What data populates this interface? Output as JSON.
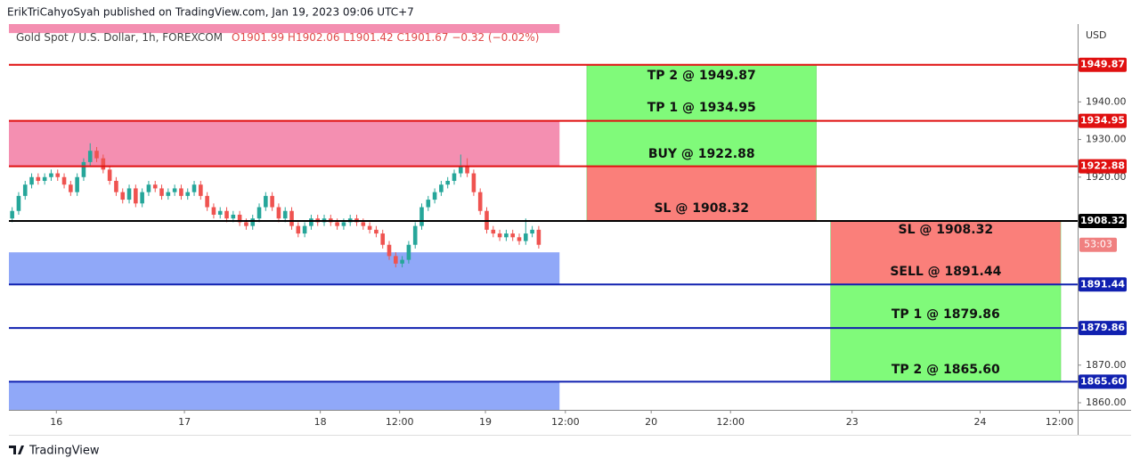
{
  "header": "ErikTriCahyoSyah published on TradingView.com, Jan 19, 2023 09:06 UTC+7",
  "footer": "TradingView",
  "chart_data": {
    "type": "candlestick",
    "symbol": "Gold Spot / U.S. Dollar, 1h, FOREXCOM",
    "ohlc_text": "O1901.99  H1902.06  L1901.42  C1901.67  −0.32 (−0.02%)",
    "currency": "USD",
    "countdown": "53:03",
    "up_color": "#26a69a",
    "down_color": "#ef5350",
    "x": [
      0,
      1,
      2,
      3,
      4,
      5,
      6,
      7,
      8,
      9,
      10,
      11,
      12,
      13,
      14,
      15,
      16,
      17,
      18,
      19,
      20,
      21,
      22,
      23,
      24,
      25,
      26,
      27,
      28,
      29,
      30,
      31,
      32,
      33,
      34,
      35,
      36,
      37,
      38,
      39,
      40,
      41,
      42,
      43,
      44,
      45,
      46,
      47,
      48,
      49,
      50,
      51,
      52,
      53,
      54,
      55,
      56,
      57,
      58,
      59,
      60,
      61,
      62,
      63,
      64,
      65,
      66,
      67,
      68,
      69,
      70,
      71,
      72,
      73,
      74,
      75,
      76,
      77,
      78,
      79,
      80,
      81
    ],
    "open": [
      1909,
      1911,
      1915,
      1918,
      1920,
      1919,
      1920,
      1921,
      1920,
      1918,
      1916,
      1920,
      1924,
      1927,
      1925,
      1922,
      1919,
      1916,
      1914,
      1917,
      1913,
      1916,
      1918,
      1917,
      1915,
      1916,
      1917,
      1915,
      1916,
      1918,
      1915,
      1912,
      1910,
      1911,
      1909,
      1910,
      1908,
      1907,
      1909,
      1912,
      1915,
      1912,
      1909,
      1911,
      1907,
      1905,
      1907,
      1909,
      1908,
      1909,
      1908,
      1907,
      1908,
      1909,
      1908,
      1907,
      1906,
      1905,
      1902,
      1899,
      1897,
      1898,
      1902,
      1907,
      1912,
      1914,
      1916,
      1918,
      1919,
      1921,
      1923,
      1921,
      1916,
      1911,
      1906,
      1905,
      1904,
      1905,
      1904,
      1903,
      1905,
      1906
    ],
    "high": [
      1912,
      1916,
      1919,
      1921,
      1921,
      1921,
      1922,
      1922,
      1921,
      1919,
      1921,
      1925,
      1929,
      1928,
      1926,
      1923,
      1920,
      1917,
      1918,
      1918,
      1917,
      1919,
      1919,
      1918,
      1917,
      1918,
      1918,
      1917,
      1919,
      1919,
      1916,
      1913,
      1912,
      1912,
      1911,
      1911,
      1909,
      1910,
      1913,
      1916,
      1916,
      1913,
      1912,
      1912,
      1908,
      1908,
      1910,
      1910,
      1910,
      1910,
      1909,
      1909,
      1910,
      1910,
      1909,
      1908,
      1907,
      1906,
      1903,
      1900,
      1899,
      1903,
      1908,
      1913,
      1915,
      1917,
      1919,
      1920,
      1922,
      1926,
      1925,
      1922,
      1917,
      1912,
      1907,
      1906,
      1906,
      1906,
      1905,
      1909,
      1907,
      1907
    ],
    "low": [
      1908,
      1910,
      1914,
      1917,
      1918,
      1918,
      1919,
      1919,
      1917,
      1915,
      1915,
      1919,
      1923,
      1924,
      1921,
      1918,
      1915,
      1913,
      1913,
      1912,
      1912,
      1915,
      1916,
      1914,
      1914,
      1915,
      1914,
      1914,
      1915,
      1914,
      1911,
      1909,
      1909,
      1908,
      1908,
      1907,
      1906,
      1906,
      1908,
      1911,
      1911,
      1908,
      1908,
      1906,
      1904,
      1904,
      1906,
      1907,
      1907,
      1907,
      1906,
      1906,
      1907,
      1907,
      1906,
      1905,
      1904,
      1901,
      1898,
      1896,
      1896,
      1897,
      1901,
      1906,
      1911,
      1913,
      1915,
      1917,
      1918,
      1920,
      1920,
      1915,
      1910,
      1905,
      1904,
      1903,
      1903,
      1903,
      1902,
      1902,
      1904,
      1901
    ],
    "close": [
      1911,
      1915,
      1918,
      1920,
      1919,
      1920,
      1921,
      1920,
      1918,
      1916,
      1920,
      1924,
      1927,
      1925,
      1922,
      1919,
      1916,
      1914,
      1917,
      1913,
      1916,
      1918,
      1917,
      1915,
      1916,
      1917,
      1915,
      1916,
      1918,
      1915,
      1912,
      1910,
      1911,
      1909,
      1910,
      1908,
      1907,
      1909,
      1912,
      1915,
      1912,
      1909,
      1911,
      1907,
      1905,
      1907,
      1909,
      1908,
      1909,
      1908,
      1907,
      1908,
      1909,
      1908,
      1907,
      1906,
      1905,
      1902,
      1899,
      1897,
      1898,
      1902,
      1907,
      1912,
      1914,
      1916,
      1918,
      1919,
      1921,
      1923,
      1921,
      1916,
      1911,
      1906,
      1905,
      1904,
      1905,
      1904,
      1903,
      1905,
      1906,
      1902
    ],
    "xlim": [
      -0.5,
      163.9
    ],
    "ylim": [
      1858.1,
      1960.7
    ],
    "xticks": [
      {
        "value": 6.8,
        "label": "16"
      },
      {
        "value": 26.5,
        "label": "17"
      },
      {
        "value": 47.4,
        "label": "18"
      },
      {
        "value": 59.6,
        "label": "12:00"
      },
      {
        "value": 72.8,
        "label": "19"
      },
      {
        "value": 85.1,
        "label": "12:00"
      },
      {
        "value": 98.3,
        "label": "20"
      },
      {
        "value": 110.5,
        "label": "12:00"
      },
      {
        "value": 129.2,
        "label": "23"
      },
      {
        "value": 148.9,
        "label": "24"
      },
      {
        "value": 161.1,
        "label": "12:00"
      }
    ],
    "yticks": [
      {
        "value": 1860,
        "label": "1860.00"
      },
      {
        "value": 1870,
        "label": "1870.00"
      },
      {
        "value": 1920,
        "label": "1920.00"
      },
      {
        "value": 1930,
        "label": "1930.00"
      },
      {
        "value": 1940,
        "label": "1940.00"
      }
    ],
    "zones": [
      {
        "x": [
          -0.5,
          84.2
        ],
        "y": [
          1958.3,
          1960.7
        ],
        "color": "#f48fb1"
      },
      {
        "x": [
          -0.5,
          84.2
        ],
        "y": [
          1922.88,
          1934.95
        ],
        "color": "#f48fb1"
      },
      {
        "x": [
          -0.5,
          84.2
        ],
        "y": [
          1891.44,
          1900.0
        ],
        "color": "#90a8f8"
      },
      {
        "x": [
          -0.5,
          84.2
        ],
        "y": [
          1858.1,
          1865.6
        ],
        "color": "#90a8f8"
      }
    ],
    "levels": [
      {
        "price": 1949.87,
        "label": "1949.87",
        "color": "#e01010"
      },
      {
        "price": 1934.95,
        "label": "1934.95",
        "color": "#e01010"
      },
      {
        "price": 1922.88,
        "label": "1922.88",
        "color": "#e01010"
      },
      {
        "price": 1908.32,
        "label": "1908.32",
        "color": "#000000"
      },
      {
        "price": 1891.44,
        "label": "1891.44",
        "color": "#1020b0"
      },
      {
        "price": 1879.86,
        "label": "1879.86",
        "color": "#1020b0"
      },
      {
        "price": 1865.6,
        "label": "1865.60",
        "color": "#1020b0"
      }
    ],
    "positions": [
      {
        "x": [
          88.4,
          123.7
        ],
        "parts": [
          {
            "y": [
              1922.88,
              1949.87
            ],
            "color": "#80fa7a"
          },
          {
            "y": [
              1908.32,
              1922.88
            ],
            "color": "#fa7f7a"
          }
        ],
        "labels": [
          "TP 2 @ 1949.87",
          "TP 1 @ 1934.95",
          "BUY @ 1922.88",
          "SL @ 1908.32"
        ]
      },
      {
        "x": [
          125.9,
          161.3
        ],
        "parts": [
          {
            "y": [
              1891.44,
              1908.32
            ],
            "color": "#fa7f7a"
          },
          {
            "y": [
              1865.6,
              1891.44
            ],
            "color": "#80fa7a"
          }
        ],
        "labels": [
          "SL @ 1908.32",
          "SELL @ 1891.44",
          "TP 1 @ 1879.86",
          "TP 2 @ 1865.60"
        ]
      }
    ]
  }
}
